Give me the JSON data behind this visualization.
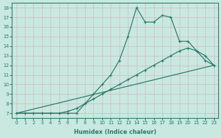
{
  "xlabel": "Humidex (Indice chaleur)",
  "bg_color": "#c8e8e0",
  "line_color": "#2a7a6a",
  "xlim": [
    -0.5,
    23.5
  ],
  "ylim": [
    6.5,
    18.5
  ],
  "yticks": [
    7,
    8,
    9,
    10,
    11,
    12,
    13,
    14,
    15,
    16,
    17,
    18
  ],
  "xticks": [
    0,
    1,
    2,
    3,
    4,
    5,
    6,
    7,
    8,
    9,
    10,
    11,
    12,
    13,
    14,
    15,
    16,
    17,
    18,
    19,
    20,
    21,
    22,
    23
  ],
  "series": [
    {
      "x": [
        0,
        23
      ],
      "y": [
        7,
        12
      ],
      "marker": false,
      "lw": 0.9
    },
    {
      "x": [
        0,
        1,
        2,
        3,
        4,
        5,
        6,
        7,
        8,
        9,
        10,
        11,
        12,
        13,
        14,
        15,
        16,
        17,
        18,
        19,
        20,
        21,
        22,
        23
      ],
      "y": [
        7,
        7,
        7,
        7,
        7,
        7,
        7.2,
        7.5,
        8,
        8.5,
        9,
        9.5,
        10,
        10.5,
        11,
        11.5,
        12,
        12.5,
        13,
        13.5,
        13.8,
        13.5,
        13.0,
        12
      ],
      "marker": true,
      "lw": 0.9
    },
    {
      "x": [
        0,
        1,
        2,
        3,
        4,
        5,
        6,
        7,
        8,
        9,
        10,
        11,
        12,
        13,
        14,
        15,
        16,
        17,
        18,
        19,
        20,
        21,
        22,
        23
      ],
      "y": [
        7,
        7,
        7,
        7,
        7,
        7,
        7,
        7,
        8,
        9,
        10,
        11,
        12.5,
        15,
        18,
        16.5,
        16.5,
        17.2,
        17.0,
        14.5,
        14.5,
        13.5,
        12.5,
        12
      ],
      "marker": true,
      "lw": 0.9
    }
  ]
}
